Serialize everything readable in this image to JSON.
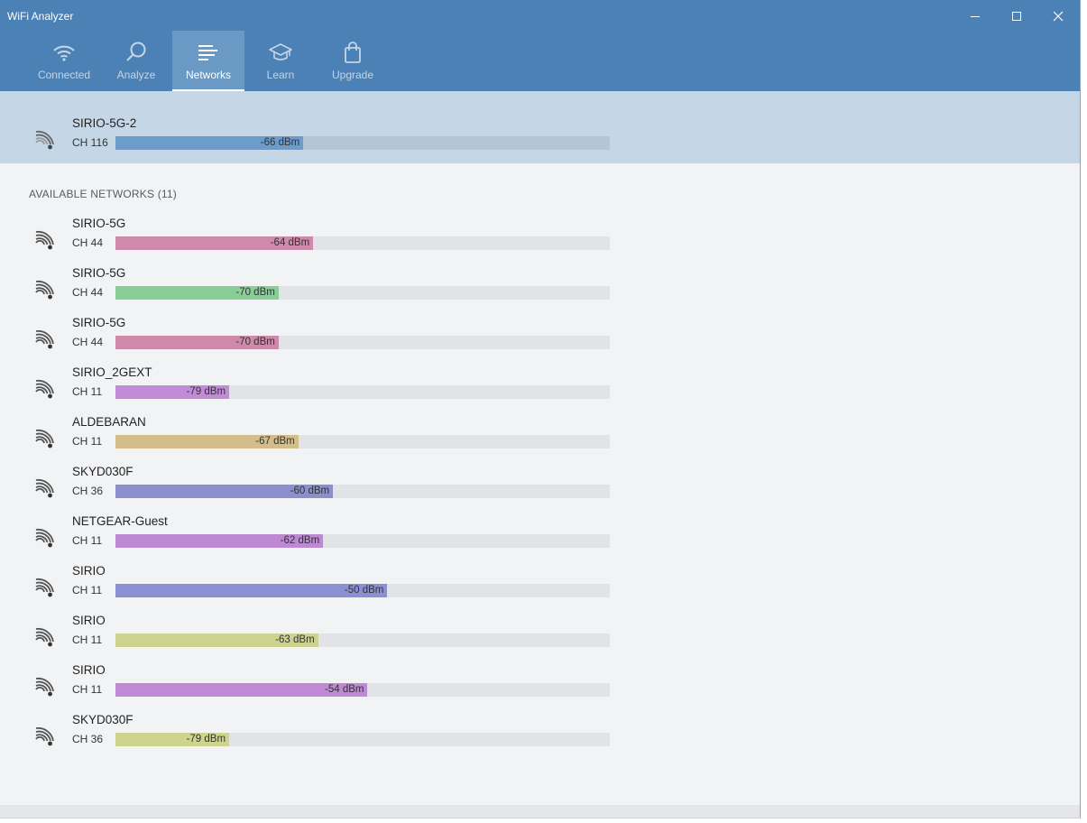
{
  "window": {
    "title": "WiFi Analyzer",
    "controls": {
      "minimize": "minimize",
      "maximize": "maximize",
      "close": "close"
    }
  },
  "nav": {
    "items": [
      {
        "label": "Connected",
        "icon": "wifi-icon",
        "active": false
      },
      {
        "label": "Analyze",
        "icon": "magnifier-icon",
        "active": false
      },
      {
        "label": "Networks",
        "icon": "list-icon",
        "active": true
      },
      {
        "label": "Learn",
        "icon": "graduation-cap-icon",
        "active": false
      },
      {
        "label": "Upgrade",
        "icon": "shopping-bag-icon",
        "active": false
      }
    ]
  },
  "colors": {
    "header": "#4b81b5",
    "active_tab": "#6b99c5",
    "connected_bg": "#c5d7e7",
    "track": "#e1e3e6"
  },
  "connected": {
    "ssid": "SIRIO-5G-2",
    "channel": "CH 116",
    "signal": "-66 dBm",
    "signal_fraction": 0.38,
    "bar_color": "#6c9ccb"
  },
  "available": {
    "label": "AVAILABLE NETWORKS (11)",
    "networks": [
      {
        "ssid": "SIRIO-5G",
        "channel": "CH 44",
        "signal": "-64 dBm",
        "signal_fraction": 0.4,
        "color": "#cf89ab"
      },
      {
        "ssid": "SIRIO-5G",
        "channel": "CH 44",
        "signal": "-70 dBm",
        "signal_fraction": 0.33,
        "color": "#88ce96"
      },
      {
        "ssid": "SIRIO-5G",
        "channel": "CH 44",
        "signal": "-70 dBm",
        "signal_fraction": 0.33,
        "color": "#cf89ab"
      },
      {
        "ssid": "SIRIO_2GEXT",
        "channel": "CH 11",
        "signal": "-79 dBm",
        "signal_fraction": 0.23,
        "color": "#c28bd8"
      },
      {
        "ssid": "ALDEBARAN",
        "channel": "CH 11",
        "signal": "-67 dBm",
        "signal_fraction": 0.37,
        "color": "#d3bd8b"
      },
      {
        "ssid": "SKYD030F",
        "channel": "CH 36",
        "signal": "-60 dBm",
        "signal_fraction": 0.44,
        "color": "#8b8fcd"
      },
      {
        "ssid": "NETGEAR-Guest",
        "channel": "CH 11",
        "signal": "-62 dBm",
        "signal_fraction": 0.42,
        "color": "#bd89d2"
      },
      {
        "ssid": "SIRIO",
        "channel": "CH 11",
        "signal": "-50 dBm",
        "signal_fraction": 0.55,
        "color": "#8a90d2"
      },
      {
        "ssid": "SIRIO",
        "channel": "CH 11",
        "signal": "-63 dBm",
        "signal_fraction": 0.41,
        "color": "#cdd38e"
      },
      {
        "ssid": "SIRIO",
        "channel": "CH 11",
        "signal": "-54 dBm",
        "signal_fraction": 0.51,
        "color": "#bf89d5"
      },
      {
        "ssid": "SKYD030F",
        "channel": "CH 36",
        "signal": "-79 dBm",
        "signal_fraction": 0.23,
        "color": "#cdd48e"
      }
    ]
  }
}
